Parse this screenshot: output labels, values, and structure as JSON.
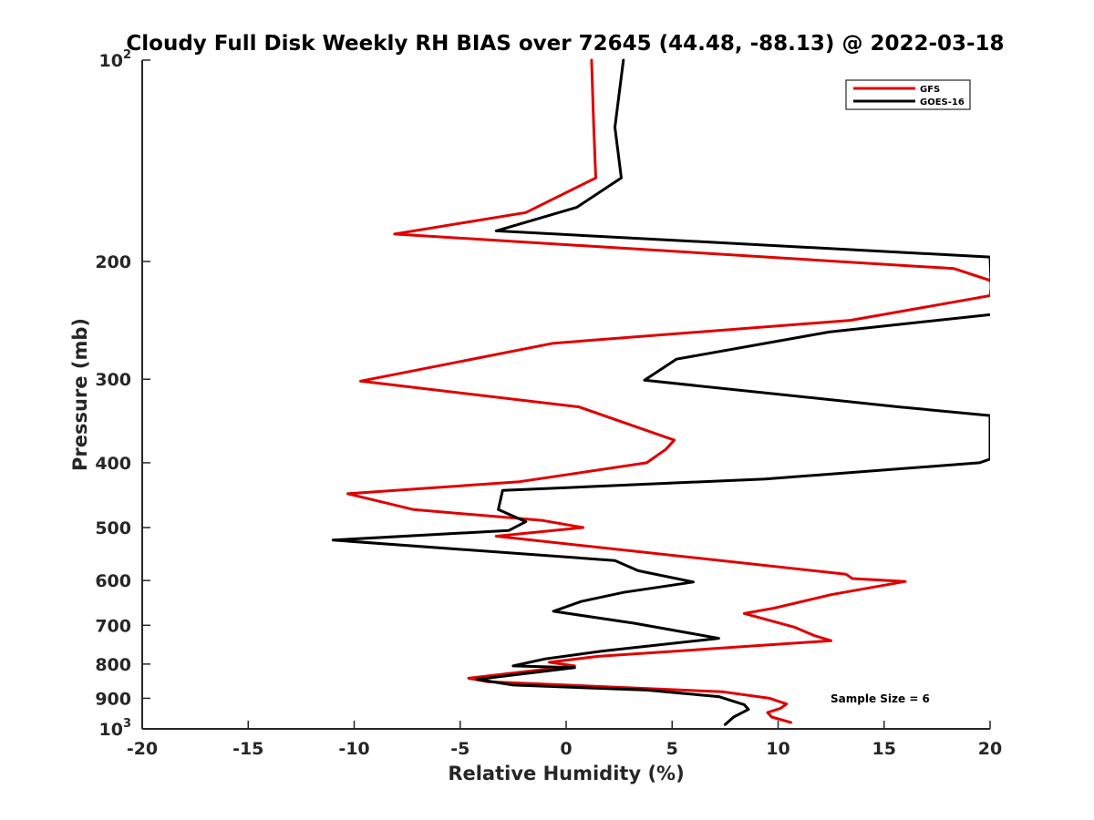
{
  "chart_data": {
    "type": "line",
    "title": "Cloudy Full Disk Weekly RH BIAS over 72645 (44.48, -88.13) @ 2022-03-18",
    "xlabel": "Relative Humidity (%)",
    "ylabel": "Pressure (mb)",
    "xlim": [
      -20,
      20
    ],
    "ylim": [
      100,
      1000
    ],
    "y_scale": "log",
    "y_reversed": true,
    "grid": false,
    "legend_position": "top-right",
    "x_ticks": [
      "-20",
      "-15",
      "-10",
      "-5",
      "0",
      "5",
      "10",
      "15",
      "20"
    ],
    "y_ticks": [
      {
        "base": "10",
        "exp": "2",
        "value": 100
      },
      {
        "label": "200",
        "value": 200
      },
      {
        "label": "300",
        "value": 300
      },
      {
        "label": "400",
        "value": 400
      },
      {
        "label": "500",
        "value": 500
      },
      {
        "label": "600",
        "value": 600
      },
      {
        "label": "700",
        "value": 700
      },
      {
        "label": "800",
        "value": 800
      },
      {
        "label": "900",
        "value": 900
      },
      {
        "base": "10",
        "exp": "3",
        "value": 1000
      }
    ],
    "annotation": "Sample Size = 6",
    "series": [
      {
        "name": "GFS",
        "color": "#e00000",
        "points": [
          [
            1.2,
            100
          ],
          [
            1.3,
            125
          ],
          [
            1.4,
            150
          ],
          [
            -1.9,
            169
          ],
          [
            -8.1,
            182
          ],
          [
            18.3,
            205
          ],
          [
            20.1,
            214
          ],
          [
            20.0,
            225
          ],
          [
            13.4,
            245
          ],
          [
            -0.6,
            265
          ],
          [
            -9.7,
            302
          ],
          [
            0.6,
            330
          ],
          [
            5.1,
            370
          ],
          [
            4.7,
            382
          ],
          [
            3.8,
            400
          ],
          [
            -2.2,
            427
          ],
          [
            -10.3,
            445
          ],
          [
            -7.2,
            470
          ],
          [
            -2.1,
            485
          ],
          [
            -1.1,
            488
          ],
          [
            0.8,
            500
          ],
          [
            -3.3,
            515
          ],
          [
            13.2,
            587
          ],
          [
            13.5,
            596
          ],
          [
            16.0,
            602
          ],
          [
            12.5,
            630
          ],
          [
            9.8,
            660
          ],
          [
            8.4,
            672
          ],
          [
            10.8,
            705
          ],
          [
            11.7,
            725
          ],
          [
            12.5,
            738
          ],
          [
            1.5,
            779
          ],
          [
            -0.8,
            795
          ],
          [
            0.4,
            805
          ],
          [
            -4.6,
            840
          ],
          [
            -3.7,
            850
          ],
          [
            7.4,
            880
          ],
          [
            9.6,
            900
          ],
          [
            10.4,
            918
          ],
          [
            10.1,
            932
          ],
          [
            9.5,
            945
          ],
          [
            9.7,
            960
          ],
          [
            10.6,
            978
          ]
        ]
      },
      {
        "name": "GOES-16",
        "color": "#000000",
        "points": [
          [
            2.7,
            100
          ],
          [
            2.3,
            126
          ],
          [
            2.6,
            150
          ],
          [
            0.5,
            166
          ],
          [
            -3.3,
            180
          ],
          [
            20.0,
            197
          ],
          [
            20.1,
            240
          ],
          [
            12.4,
            255
          ],
          [
            5.2,
            280
          ],
          [
            3.7,
            301
          ],
          [
            15.7,
            330
          ],
          [
            20.0,
            340
          ],
          [
            20.0,
            395
          ],
          [
            19.5,
            400
          ],
          [
            9.4,
            423
          ],
          [
            -3.0,
            440
          ],
          [
            -3.2,
            470
          ],
          [
            -1.9,
            490
          ],
          [
            -2.7,
            505
          ],
          [
            -11.0,
            522
          ],
          [
            2.3,
            560
          ],
          [
            3.4,
            580
          ],
          [
            6.0,
            603
          ],
          [
            2.7,
            625
          ],
          [
            0.7,
            645
          ],
          [
            -0.6,
            667
          ],
          [
            3.2,
            695
          ],
          [
            7.2,
            732
          ],
          [
            1.7,
            765
          ],
          [
            -1.0,
            786
          ],
          [
            -2.5,
            805
          ],
          [
            0.4,
            810
          ],
          [
            -4.2,
            843
          ],
          [
            -2.5,
            860
          ],
          [
            3.8,
            875
          ],
          [
            7.2,
            895
          ],
          [
            8.4,
            920
          ],
          [
            8.6,
            935
          ],
          [
            7.9,
            960
          ],
          [
            7.5,
            985
          ]
        ]
      }
    ]
  }
}
